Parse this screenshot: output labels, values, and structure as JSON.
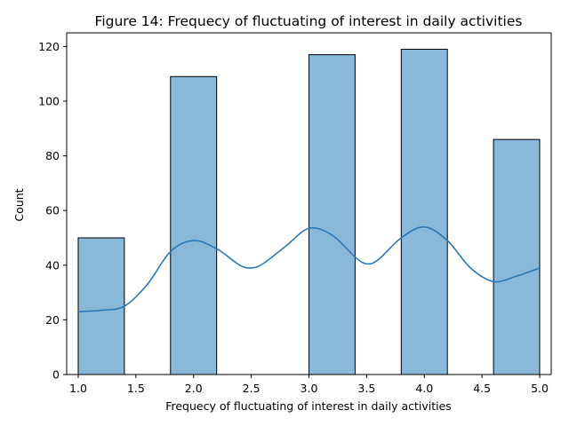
{
  "chart_data": {
    "type": "bar",
    "title": "Figure 14: Frequecy of fluctuating of interest in daily activities",
    "xlabel": "Frequecy of fluctuating of interest in daily activities",
    "ylabel": "Count",
    "xlim": [
      0.9,
      5.1
    ],
    "ylim": [
      0,
      125
    ],
    "xticks": [
      "1.0",
      "1.5",
      "2.0",
      "2.5",
      "3.0",
      "3.5",
      "4.0",
      "4.5",
      "5.0"
    ],
    "yticks": [
      "0",
      "20",
      "40",
      "60",
      "80",
      "100",
      "120"
    ],
    "bins": [
      {
        "x0": 1.0,
        "x1": 1.4,
        "value": 50
      },
      {
        "x0": 1.8,
        "x1": 2.2,
        "value": 109
      },
      {
        "x0": 3.0,
        "x1": 3.4,
        "value": 117
      },
      {
        "x0": 3.8,
        "x1": 4.2,
        "value": 119
      },
      {
        "x0": 4.6,
        "x1": 5.0,
        "value": 86
      }
    ],
    "kde": {
      "x": [
        1.0,
        1.2,
        1.4,
        1.6,
        1.8,
        2.0,
        2.2,
        2.4,
        2.5,
        2.6,
        2.8,
        3.0,
        3.2,
        3.4,
        3.5,
        3.6,
        3.8,
        4.0,
        4.2,
        4.4,
        4.6,
        4.8,
        5.0
      ],
      "y": [
        23,
        23.5,
        25,
        33,
        45,
        49,
        46,
        40,
        39,
        40.5,
        47,
        53.5,
        51,
        43,
        40.5,
        42,
        50,
        54,
        49,
        39,
        34,
        36,
        39
      ]
    },
    "colors": {
      "bar_fill": "#8ab8d9",
      "bar_edge": "#000000",
      "kde_line": "#2b78b6"
    },
    "grid": false,
    "legend": "none"
  }
}
